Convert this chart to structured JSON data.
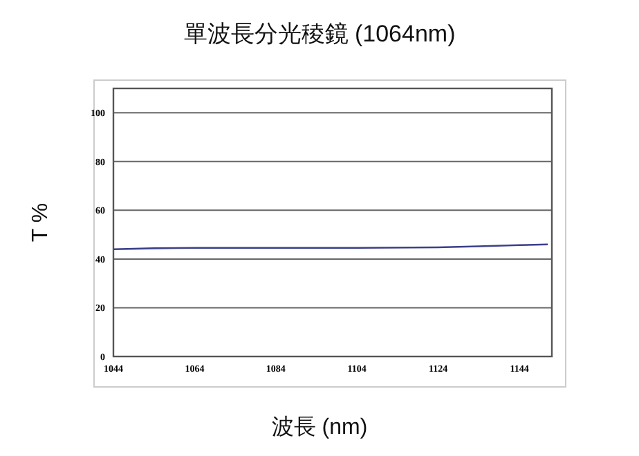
{
  "chart_data": {
    "type": "line",
    "title": "單波長分光稜鏡 (1064nm)",
    "xlabel": "波長 (nm)",
    "ylabel": "T %",
    "x": [
      1044,
      1054,
      1064,
      1084,
      1104,
      1124,
      1134,
      1144,
      1151
    ],
    "series": [
      {
        "color": "#3c3f8a",
        "values": [
          44,
          44.4,
          44.6,
          44.6,
          44.6,
          44.8,
          45.2,
          45.7,
          46
        ]
      }
    ],
    "xlim": [
      1044,
      1152
    ],
    "xticks": [
      1044,
      1064,
      1084,
      1104,
      1124,
      1144
    ],
    "ylim": [
      0,
      110
    ],
    "yticks": [
      0,
      20,
      40,
      60,
      80,
      100
    ],
    "grid": "y",
    "marker": "none",
    "line_style": "solid"
  }
}
